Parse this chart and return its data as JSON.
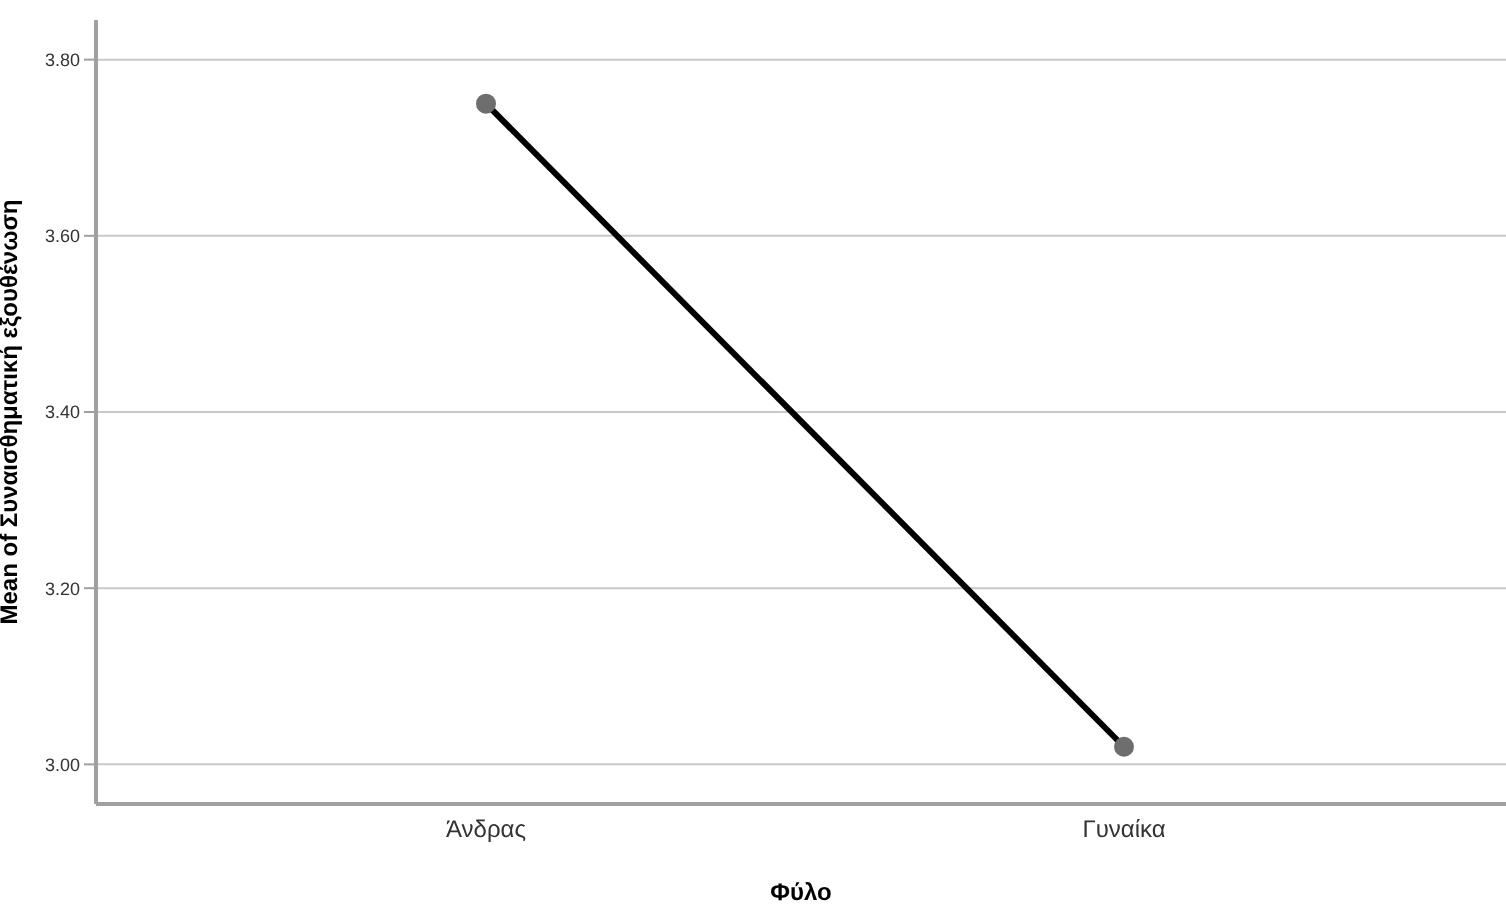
{
  "chart_data": {
    "type": "line",
    "xlabel": "Φύλο",
    "ylabel": "Mean of Συναισθηματική εξουθένωση",
    "categories": [
      "Άνδρας",
      "Γυναίκα"
    ],
    "series": [
      {
        "color": "#000000",
        "values": [
          3.75,
          3.02
        ]
      }
    ],
    "ylim": [
      2.955,
      3.845
    ],
    "yticks": [
      {
        "value": 3.0,
        "label": "3.00"
      },
      {
        "value": 3.2,
        "label": "3.20"
      },
      {
        "value": 3.4,
        "label": "3.40"
      },
      {
        "value": 3.6,
        "label": "3.60"
      },
      {
        "value": 3.8,
        "label": "3.80"
      }
    ],
    "grid": "y",
    "marker": "circle",
    "line_style": "solid"
  }
}
